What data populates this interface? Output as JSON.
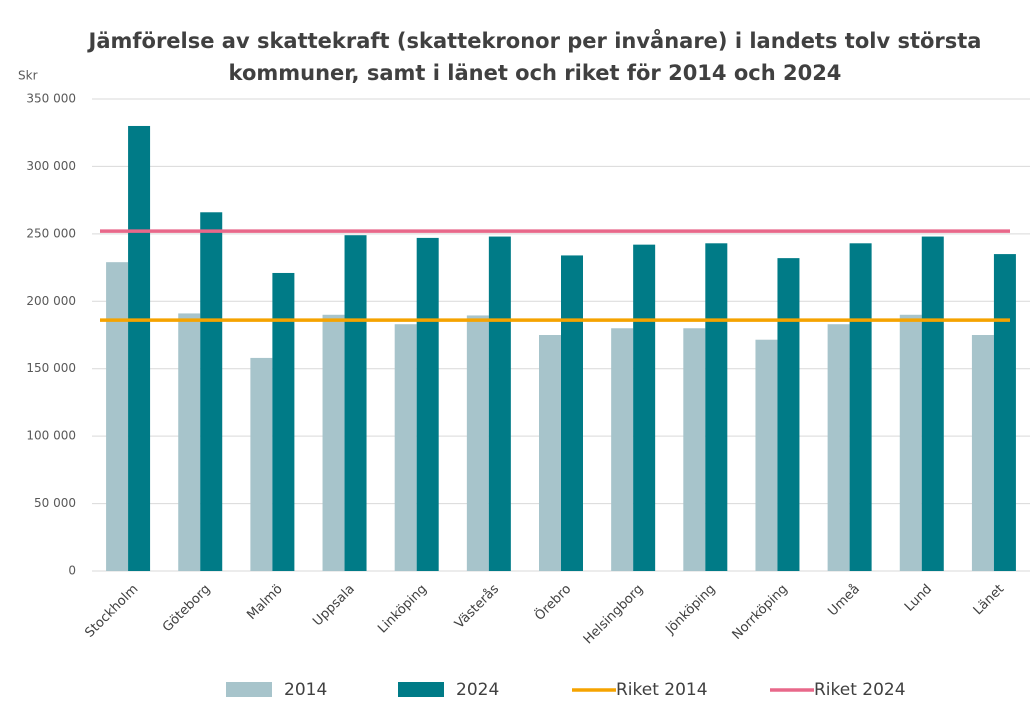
{
  "chart_data": {
    "type": "bar",
    "title": [
      "Jämförelse av skattekraft (skattekronor per invånare) i landets tolv största",
      "kommuner, samt i länet och riket för 2014 och 2024"
    ],
    "y_label": "Skr",
    "categories": [
      "Stockholm",
      "Göteborg",
      "Malmö",
      "Uppsala",
      "Linköping",
      "Västerås",
      "Örebro",
      "Helsingborg",
      "Jönköping",
      "Norrköping",
      "Umeå",
      "Lund",
      "Länet"
    ],
    "series": [
      {
        "name": "2014",
        "color": "#a7c4cb",
        "values": [
          229000,
          191000,
          158000,
          190000,
          183000,
          189500,
          175000,
          180000,
          180000,
          171500,
          183000,
          190000,
          175000
        ]
      },
      {
        "name": "2024",
        "color": "#007b87",
        "values": [
          330000,
          266000,
          221000,
          249000,
          247000,
          248000,
          234000,
          242000,
          243000,
          232000,
          243000,
          248000,
          235000
        ]
      }
    ],
    "reference_lines": [
      {
        "name": "Riket 2014",
        "color": "#f5a300",
        "value": 186000
      },
      {
        "name": "Riket 2024",
        "color": "#e8688a",
        "value": 252000
      }
    ],
    "ylim": [
      0,
      350000
    ],
    "yticks": [
      0,
      {
        "value": 50000,
        "label": "50 000"
      },
      {
        "value": 100000,
        "label": "100 000"
      },
      {
        "value": 150000,
        "label": "150 000"
      },
      {
        "value": 200000,
        "label": "200 000"
      },
      {
        "value": 250000,
        "label": "250 000"
      },
      {
        "value": 300000,
        "label": "300 000"
      },
      {
        "value": 350000,
        "label": "350 000"
      }
    ],
    "grid": true,
    "legend": "bottom"
  }
}
